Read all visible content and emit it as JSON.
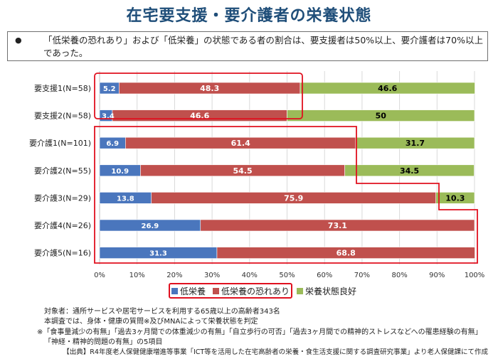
{
  "title": "在宅要支援・要介護者の栄養状態",
  "summary": {
    "bullet": "●",
    "text": "「低栄養の恐れあり」および「低栄養」の状態である者の割合は、要支援者は50%以上、要介護者は70%以上であった。"
  },
  "colors": {
    "low_nutrition": "#4a76bd",
    "risk": "#c0504d",
    "good": "#9bbb59",
    "highlight": "#e0101f"
  },
  "chart_data": {
    "type": "bar",
    "orientation": "horizontal",
    "stacked": true,
    "categories": [
      "要支援1(N=58)",
      "要支援2(N=58)",
      "要介護1(N=101)",
      "要介護2(N=55)",
      "要介護3(N=29)",
      "要介護4(N=26)",
      "要介護5(N=16)"
    ],
    "series": [
      {
        "name": "低栄養",
        "values": [
          5.2,
          3.4,
          6.9,
          10.9,
          13.8,
          26.9,
          31.3
        ],
        "labels": [
          "5.2",
          "3.4",
          "6.9",
          "10.9",
          "13.8",
          "26.9",
          "31.3"
        ]
      },
      {
        "name": "低栄養の恐れあり",
        "values": [
          48.3,
          46.6,
          61.4,
          54.5,
          75.9,
          73.1,
          68.8
        ],
        "labels": [
          "48.3",
          "46.6",
          "61.4",
          "54.5",
          "75.9",
          "73.1",
          "68.8"
        ]
      },
      {
        "name": "栄養状態良好",
        "values": [
          46.6,
          50,
          31.7,
          34.5,
          10.3,
          0,
          0
        ],
        "labels": [
          "46.6",
          "50",
          "31.7",
          "34.5",
          "10.3",
          "",
          ""
        ]
      }
    ],
    "xlim": [
      0,
      100
    ],
    "xticks": [
      "0%",
      "10%",
      "20%",
      "30%",
      "40%",
      "50%",
      "60%",
      "70%",
      "80%",
      "90%",
      "100%"
    ],
    "grid": true,
    "legend_position": "bottom"
  },
  "notes": {
    "line1": "対象者：通所サービスや居宅サービスを利用する65歳以上の高齢者343名",
    "line2": "本調査では、身体・健康の質問※及びMNAによって栄養状態を判定",
    "line3": "※「食事量減少の有無」「過去3ヶ月間での体重減少の有無」「自立歩行の可否」「過去3ヶ月間での精神的ストレスなどへの罹患経験の有無」",
    "line4": "「神経・精神的問題の有無」の5項目"
  },
  "source": "【出典】R4年度老人保健健康増進等事業「ICT等を活用した在宅高齢者の栄養・食生活支援に関する調査研究事業」より老人保健課にて作成"
}
